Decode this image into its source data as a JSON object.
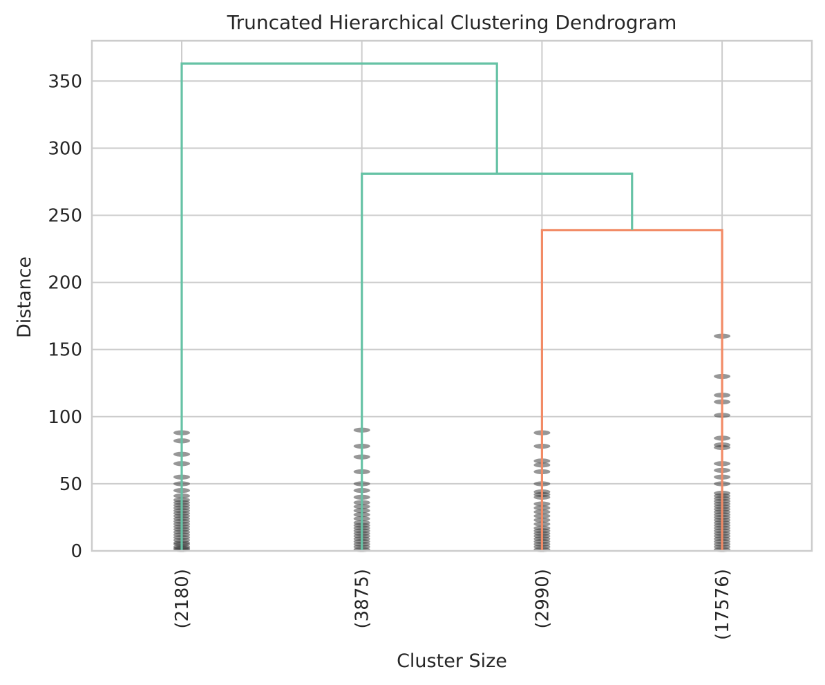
{
  "chart_data": {
    "type": "dendrogram",
    "title": "Truncated Hierarchical Clustering Dendrogram",
    "xlabel": "Cluster Size",
    "ylabel": "Distance",
    "ylim": [
      0,
      380
    ],
    "yticks": [
      0,
      50,
      100,
      150,
      200,
      250,
      300,
      350
    ],
    "grid": true,
    "leaves": [
      {
        "label": "(2180)",
        "position": 1
      },
      {
        "label": "(3875)",
        "position": 2
      },
      {
        "label": "(2990)",
        "position": 3
      },
      {
        "label": "(17576)",
        "position": 4
      }
    ],
    "links": [
      {
        "left_x": 3,
        "right_x": 4,
        "left_bottom": 0,
        "right_bottom": 0,
        "height": 239,
        "color": "#f28b66"
      },
      {
        "left_x": 2,
        "right_x": 3.5,
        "left_bottom": 0,
        "right_bottom": 239,
        "height": 281,
        "color": "#66c2a5"
      },
      {
        "left_x": 1,
        "right_x": 2.75,
        "left_bottom": 0,
        "right_bottom": 281,
        "height": 363,
        "color": "#66c2a5"
      }
    ],
    "truncated_merge_heights": [
      [
        1,
        2,
        3,
        5,
        6,
        8,
        10,
        12,
        14,
        16,
        18,
        20,
        22,
        24,
        26,
        28,
        30,
        32,
        34,
        36,
        38,
        41,
        45,
        50,
        55,
        65,
        72,
        82,
        88
      ],
      [
        1,
        3,
        5,
        7,
        9,
        11,
        13,
        15,
        17,
        19,
        21,
        24,
        27,
        30,
        33,
        36,
        40,
        45,
        50,
        59,
        70,
        78,
        90
      ],
      [
        1,
        3,
        5,
        7,
        9,
        11,
        13,
        15,
        17,
        20,
        23,
        26,
        29,
        32,
        35,
        40,
        42,
        44,
        50,
        59,
        64,
        67,
        78,
        88
      ],
      [
        1,
        3,
        5,
        7,
        9,
        11,
        13,
        15,
        17,
        19,
        21,
        23,
        25,
        27,
        29,
        31,
        33,
        35,
        37,
        39,
        41,
        43,
        50,
        55,
        60,
        65,
        77,
        79,
        84,
        101,
        111,
        116,
        130,
        160
      ]
    ],
    "marker_color": "#303030"
  }
}
